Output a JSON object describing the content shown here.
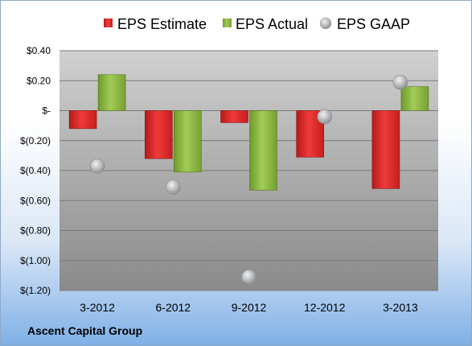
{
  "company": "Ascent Capital Group",
  "chart_data": {
    "type": "bar",
    "categories": [
      "3-2012",
      "6-2012",
      "9-2012",
      "12-2012",
      "3-2013"
    ],
    "series": [
      {
        "name": "EPS Estimate",
        "kind": "bar",
        "color": "#e0202a",
        "values": [
          -0.12,
          -0.32,
          -0.08,
          -0.31,
          -0.52
        ]
      },
      {
        "name": "EPS Actual",
        "kind": "bar",
        "color": "#8ab33f",
        "values": [
          0.24,
          -0.41,
          -0.53,
          null,
          0.16
        ]
      },
      {
        "name": "EPS GAAP",
        "kind": "scatter",
        "color": "#b8bcc0",
        "values": [
          -0.37,
          -0.51,
          -1.11,
          -0.04,
          0.19
        ]
      }
    ],
    "yticks": [
      "$0.40",
      "$0.20",
      "$-",
      "$(0.20)",
      "$(0.40)",
      "$(0.60)",
      "$(0.80)",
      "$(1.00)",
      "$(1.20)"
    ],
    "ylim": [
      -1.2,
      0.4
    ],
    "grid": true,
    "legend": "top"
  }
}
